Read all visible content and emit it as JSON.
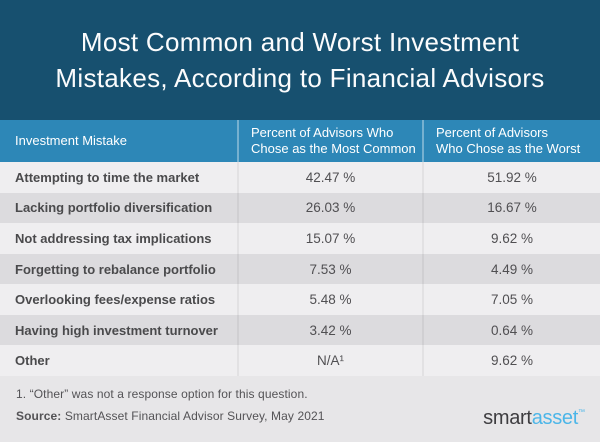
{
  "title": {
    "line1": "Most Common and Worst Investment",
    "line2": "Mistakes, According to Financial Advisors"
  },
  "table": {
    "columns": [
      {
        "label": "Investment Mistake"
      },
      {
        "line1": "Percent of Advisors Who",
        "line2": "Chose as the Most Common"
      },
      {
        "line1": "Percent of Advisors",
        "line2": "Who Chose as the Worst"
      }
    ],
    "rows": [
      {
        "mistake": "Attempting to time the market",
        "most_common": "42.47 %",
        "worst": "51.92 %"
      },
      {
        "mistake": "Lacking portfolio diversification",
        "most_common": "26.03 %",
        "worst": "16.67 %"
      },
      {
        "mistake": "Not addressing tax implications",
        "most_common": "15.07 %",
        "worst": "9.62 %"
      },
      {
        "mistake": "Forgetting to rebalance portfolio",
        "most_common": "7.53 %",
        "worst": "4.49 %"
      },
      {
        "mistake": "Overlooking fees/expense ratios",
        "most_common": "5.48 %",
        "worst": "7.05 %"
      },
      {
        "mistake": "Having high investment turnover",
        "most_common": "3.42 %",
        "worst": "0.64 %"
      },
      {
        "mistake": "Other",
        "most_common": "N/A¹",
        "worst": "9.62 %"
      }
    ]
  },
  "footer": {
    "footnote": "1. “Other” was not a response option for this question.",
    "source_label": "Source:",
    "source_text": " SmartAsset Financial Advisor Survey, May 2021",
    "logo": {
      "smart": "smart",
      "asset": "asset",
      "tm": "™"
    }
  },
  "colors": {
    "title_bg": "#17506f",
    "header_bg": "#2d87b7",
    "row_light": "#efeef0",
    "row_dark": "#dcdbde",
    "footer_bg": "#e7e6e8",
    "logo_blue": "#4cb6e8"
  },
  "chart_data": {
    "type": "table",
    "title": "Most Common and Worst Investment Mistakes, According to Financial Advisors",
    "categories": [
      "Attempting to time the market",
      "Lacking portfolio diversification",
      "Not addressing tax implications",
      "Forgetting to rebalance portfolio",
      "Overlooking fees/expense ratios",
      "Having high investment turnover",
      "Other"
    ],
    "series": [
      {
        "name": "Percent of Advisors Who Chose as the Most Common",
        "values": [
          42.47,
          26.03,
          15.07,
          7.53,
          5.48,
          3.42,
          null
        ]
      },
      {
        "name": "Percent of Advisors Who Chose as the Worst",
        "values": [
          51.92,
          16.67,
          9.62,
          4.49,
          7.05,
          0.64,
          9.62
        ]
      }
    ],
    "footnote": "1. “Other” was not a response option for this question.",
    "source": "SmartAsset Financial Advisor Survey, May 2021"
  }
}
